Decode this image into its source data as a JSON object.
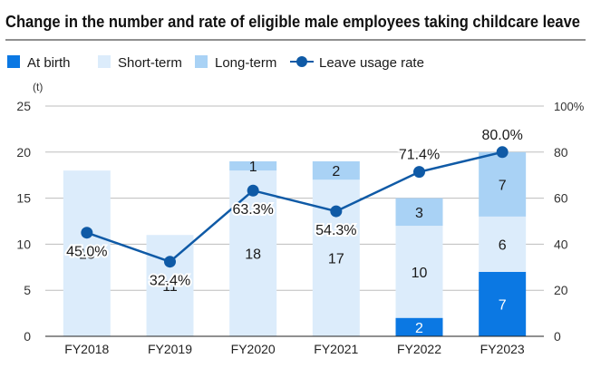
{
  "chart_data": {
    "type": "bar",
    "stacked": true,
    "title": "Change in the number and rate of eligible male employees taking childcare leave",
    "y_unit_label": "(t)",
    "ylim": [
      0,
      25
    ],
    "yticks": [
      0,
      5,
      10,
      15,
      20,
      25
    ],
    "y2_unit": "100%",
    "y2lim": [
      0,
      100
    ],
    "y2ticks": [
      "0",
      "20",
      "40",
      "60",
      "80"
    ],
    "categories": [
      "FY2018",
      "FY2019",
      "FY2020",
      "FY2021",
      "FY2022",
      "FY2023"
    ],
    "series": [
      {
        "name": "At birth",
        "color": "#0b78e3",
        "label_color": "#ffffff",
        "values": [
          0,
          0,
          0,
          0,
          2,
          7
        ]
      },
      {
        "name": "Short-term",
        "color": "#dcecfb",
        "label_color": "#1a1a1a",
        "values": [
          18,
          11,
          18,
          17,
          10,
          6
        ]
      },
      {
        "name": "Long-term",
        "color": "#a9d2f5",
        "label_color": "#1a1a1a",
        "values": [
          0,
          0,
          1,
          2,
          3,
          7
        ]
      }
    ],
    "line": {
      "name": "Leave usage rate",
      "color": "#0f5aa6",
      "values": [
        45.0,
        32.4,
        63.3,
        54.3,
        71.4,
        80.0
      ],
      "labels": [
        "45.0%",
        "32.4%",
        "63.3%",
        "54.3%",
        "71.4%",
        "80.0%"
      ]
    }
  }
}
